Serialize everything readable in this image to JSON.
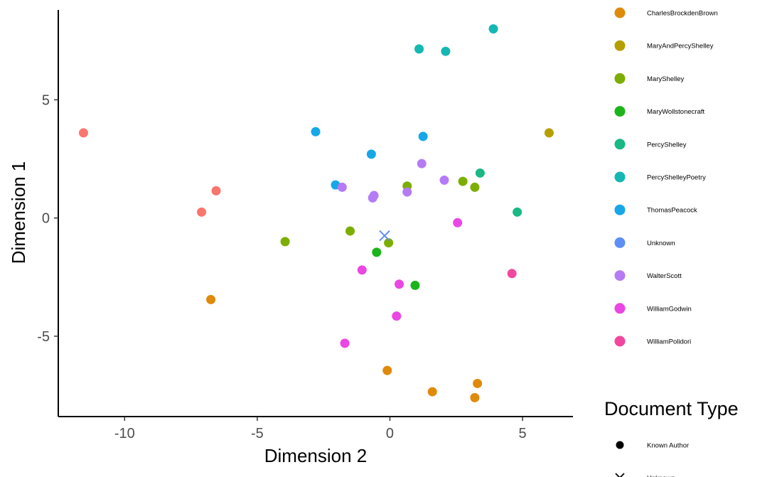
{
  "chart_data": {
    "type": "scatter",
    "xlabel": "Dimension 2",
    "ylabel": "Dimension 1",
    "xlim": [
      -12.5,
      6.9
    ],
    "ylim": [
      -8.4,
      8.8
    ],
    "xticks": [
      -10,
      -5,
      0,
      5
    ],
    "yticks": [
      -5,
      0,
      5
    ],
    "grid": false,
    "legend_placement": "right",
    "series": [
      {
        "name": "CharlesBrockdenBrown",
        "color": "#E08A0B",
        "points": [
          [
            -6.75,
            -3.45
          ],
          [
            -0.1,
            -6.45
          ],
          [
            1.6,
            -7.35
          ],
          [
            3.3,
            -7.0
          ],
          [
            3.2,
            -7.6
          ]
        ]
      },
      {
        "name": "MaryAndPercyShelley",
        "color": "#B59F00",
        "points": [
          [
            6.0,
            3.6
          ]
        ]
      },
      {
        "name": "MaryShelley",
        "color": "#7CAE00",
        "points": [
          [
            -3.95,
            -1.0
          ],
          [
            -1.5,
            -0.55
          ],
          [
            -0.05,
            -1.05
          ],
          [
            0.65,
            1.35
          ],
          [
            2.75,
            1.55
          ],
          [
            3.2,
            1.3
          ]
        ]
      },
      {
        "name": "MaryWollstonecraft",
        "color": "#1BB51B",
        "points": [
          [
            -0.5,
            -1.45
          ],
          [
            0.95,
            -2.85
          ]
        ]
      },
      {
        "name": "PercyShelley",
        "color": "#19B884",
        "points": [
          [
            3.4,
            1.9
          ],
          [
            4.8,
            0.25
          ]
        ]
      },
      {
        "name": "PercyShelleyPoetry",
        "color": "#15B7B2",
        "points": [
          [
            1.1,
            7.15
          ],
          [
            2.1,
            7.05
          ],
          [
            3.9,
            8.0
          ]
        ]
      },
      {
        "name": "ThomasPeacock",
        "color": "#16A7E8",
        "points": [
          [
            -2.8,
            3.65
          ],
          [
            -2.05,
            1.4
          ],
          [
            -0.7,
            2.7
          ],
          [
            1.25,
            3.45
          ]
        ]
      },
      {
        "name": "Unknown",
        "color": "#5E8FF5",
        "marker": "x",
        "points": [
          [
            -0.2,
            -0.75
          ]
        ]
      },
      {
        "name": "WalterScott",
        "color": "#B57BF5",
        "points": [
          [
            -1.8,
            1.3
          ],
          [
            -0.65,
            0.85
          ],
          [
            -0.6,
            0.95
          ],
          [
            0.65,
            1.1
          ],
          [
            1.2,
            2.3
          ],
          [
            2.05,
            1.6
          ]
        ]
      },
      {
        "name": "WilliamGodwin",
        "color": "#EA47E4",
        "points": [
          [
            -1.7,
            -5.3
          ],
          [
            -1.05,
            -2.2
          ],
          [
            0.25,
            -4.15
          ],
          [
            0.35,
            -2.8
          ],
          [
            2.55,
            -0.2
          ]
        ]
      },
      {
        "name": "WilliamPolidori",
        "color": "#F2479E",
        "points": [
          [
            4.6,
            -2.35
          ]
        ]
      },
      {
        "name": "",
        "color": "#F8766D",
        "points": [
          [
            -11.55,
            3.6
          ],
          [
            -7.1,
            0.25
          ],
          [
            -6.55,
            1.15
          ]
        ]
      }
    ],
    "legend_authors": [
      {
        "name": "CharlesBrockdenBrown",
        "color": "#E08A0B"
      },
      {
        "name": "MaryAndPercyShelley",
        "color": "#B59F00"
      },
      {
        "name": "MaryShelley",
        "color": "#7CAE00"
      },
      {
        "name": "MaryWollstonecraft",
        "color": "#1BB51B"
      },
      {
        "name": "PercyShelley",
        "color": "#19B884"
      },
      {
        "name": "PercyShelleyPoetry",
        "color": "#15B7B2"
      },
      {
        "name": "ThomasPeacock",
        "color": "#16A7E8"
      },
      {
        "name": "Unknown",
        "color": "#5E8FF5"
      },
      {
        "name": "WalterScott",
        "color": "#B57BF5"
      },
      {
        "name": "WilliamGodwin",
        "color": "#EA47E4"
      },
      {
        "name": "WilliamPolidori",
        "color": "#F2479E"
      }
    ],
    "legend_doc_type": {
      "title": "Document Type",
      "items": [
        {
          "name": "Known Author",
          "marker": "circle"
        },
        {
          "name": "Unknown",
          "marker": "x"
        }
      ]
    }
  }
}
